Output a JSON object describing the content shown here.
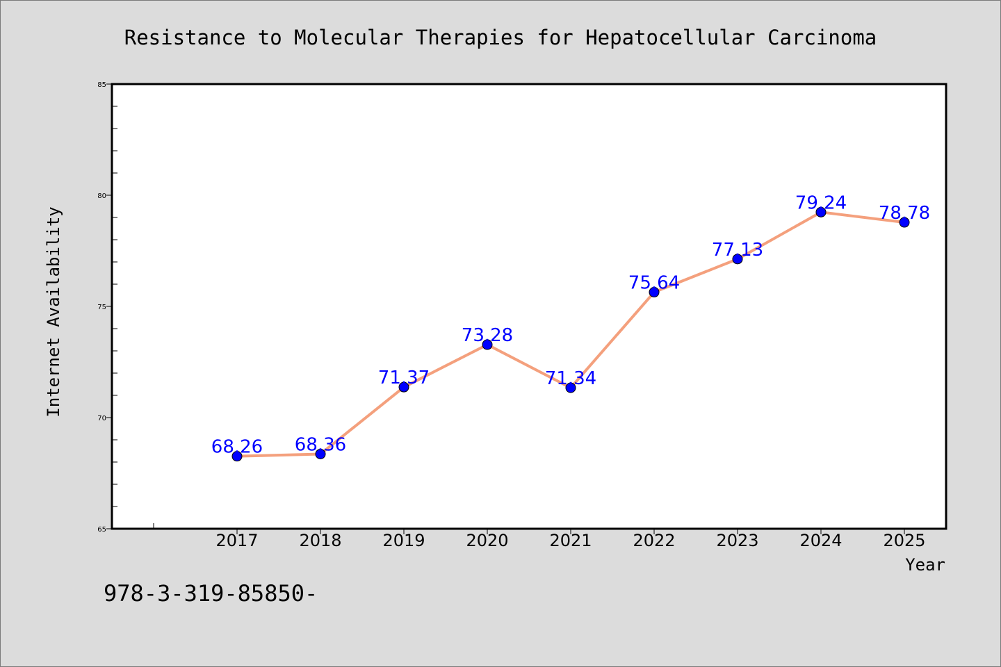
{
  "colors": {
    "background": "#dcdcdc",
    "plot_background": "#ffffff",
    "line": "#f4a07d",
    "marker": "#0000ff",
    "data_label": "#0000ff",
    "text": "#000000"
  },
  "footer_text": "978-3-319-85850-",
  "chart_data": {
    "type": "line",
    "title": "Resistance to Molecular Therapies for Hepatocellular Carcinoma",
    "xlabel": "Year",
    "ylabel": "Internet Availability",
    "x": [
      "2017",
      "2018",
      "2019",
      "2020",
      "2021",
      "2022",
      "2023",
      "2024",
      "2025"
    ],
    "series": [
      {
        "values": [
          68.26,
          68.36,
          71.37,
          73.28,
          71.34,
          75.64,
          77.13,
          79.24,
          78.78
        ],
        "labels": [
          "68.26",
          "68.36",
          "71.37",
          "73.28",
          "71.34",
          "75.64",
          "77.13",
          "79.24",
          "78.78"
        ]
      }
    ],
    "ylim": [
      65,
      85
    ],
    "yticks": [
      "65",
      "70",
      "75",
      "80",
      "85"
    ],
    "grid": false,
    "legend": "none"
  }
}
